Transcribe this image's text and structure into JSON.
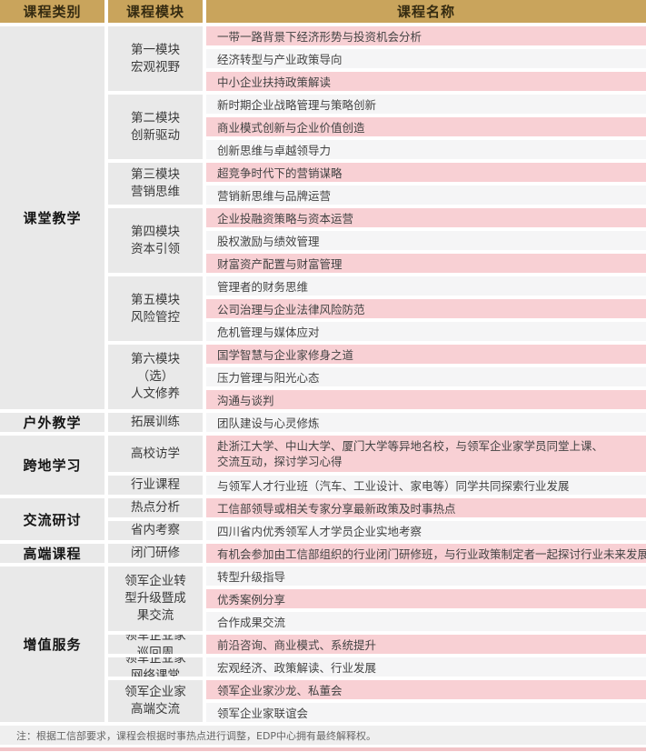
{
  "table": {
    "headers": [
      "课程类别",
      "课程模块",
      "课程名称"
    ],
    "categories": [
      {
        "name": "课堂教学",
        "modules": [
          {
            "name": "第一模块\n宏观视野",
            "courses": [
              "一带一路背景下经济形势与投资机会分析",
              "经济转型与产业政策导向",
              "中小企业扶持政策解读"
            ]
          },
          {
            "name": "第二模块\n创新驱动",
            "courses": [
              "新时期企业战略管理与策略创新",
              "商业模式创新与企业价值创造",
              "创新思维与卓越领导力"
            ]
          },
          {
            "name": "第三模块\n营销思维",
            "courses": [
              "超竞争时代下的营销谋略",
              "营销新思维与品牌运营"
            ]
          },
          {
            "name": "第四模块\n资本引领",
            "courses": [
              "企业投融资策略与资本运营",
              "股权激励与绩效管理",
              "财富资产配置与财富管理"
            ]
          },
          {
            "name": "第五模块\n风险管控",
            "courses": [
              "管理者的财务思维",
              "公司治理与企业法律风险防范",
              "危机管理与媒体应对"
            ]
          },
          {
            "name": "第六模块\n（选）\n人文修养",
            "courses": [
              "国学智慧与企业家修身之道",
              "压力管理与阳光心态",
              "沟通与谈判"
            ]
          }
        ]
      },
      {
        "name": "户外教学",
        "modules": [
          {
            "name": "拓展训练",
            "courses": [
              "团队建设与心灵修炼"
            ]
          }
        ]
      },
      {
        "name": "跨地学习",
        "modules": [
          {
            "name": "高校访学",
            "courses": [
              "赴浙江大学、中山大学、厦门大学等异地名校，与领军企业家学员同堂上课、\n交流互动，探讨学习心得"
            ]
          },
          {
            "name": "行业课程",
            "courses": [
              "与领军人才行业班（汽车、工业设计、家电等）同学共同探索行业发展"
            ]
          }
        ]
      },
      {
        "name": "交流研讨",
        "modules": [
          {
            "name": "热点分析",
            "courses": [
              "工信部领导或相关专家分享最新政策及时事热点"
            ]
          },
          {
            "name": "省内考察",
            "courses": [
              "四川省内优秀领军人才学员企业实地考察"
            ]
          }
        ]
      },
      {
        "name": "高端课程",
        "modules": [
          {
            "name": "闭门研修",
            "courses": [
              "有机会参加由工信部组织的行业闭门研修班，与行业政策制定者一起探讨行业未来发展"
            ]
          }
        ]
      },
      {
        "name": "增值服务",
        "modules": [
          {
            "name": "领军企业转\n型升级暨成\n果交流",
            "courses": [
              "转型升级指导",
              "优秀案例分享",
              "合作成果交流"
            ]
          },
          {
            "name": "领军企业家\n巡回周",
            "courses": [
              "前沿咨询、商业模式、系统提升"
            ]
          },
          {
            "name": "领军企业家\n网络课堂",
            "courses": [
              "宏观经济、政策解读、行业发展"
            ]
          },
          {
            "name": "领军企业家\n高端交流",
            "courses": [
              "领军企业家沙龙、私董会",
              "领军企业家联谊会"
            ]
          }
        ]
      }
    ]
  },
  "footer": {
    "note": "注：根据工信部要求，课程会根据时事热点进行调整，EDP中心拥有最终解释权。"
  },
  "colors": {
    "header_bg": "#C9A45C",
    "pink_row": "#F8D0D4",
    "light_row": "#F5F5F6",
    "gray_cell": "#E9E9E9",
    "bottom_strip": "#F2C3C7"
  }
}
